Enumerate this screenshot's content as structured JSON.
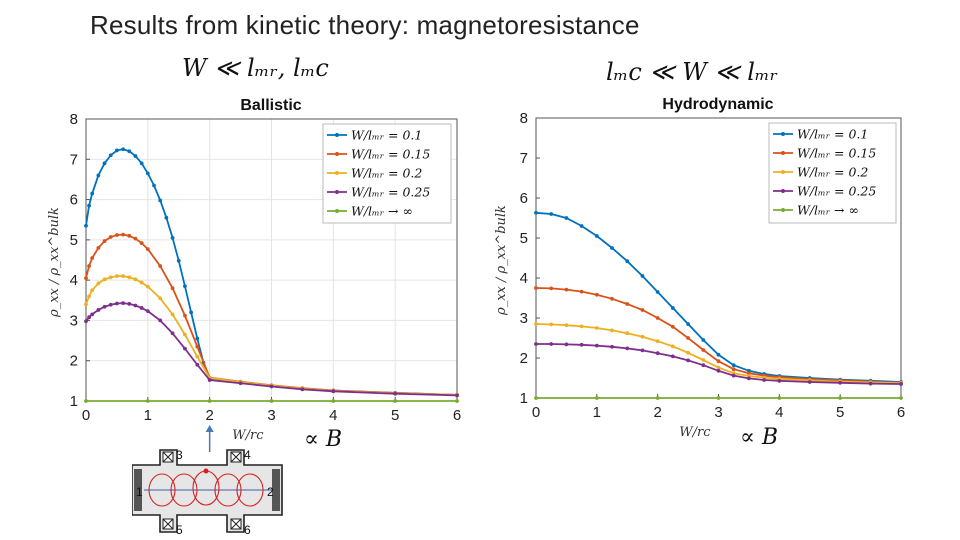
{
  "slide_title": "Results from kinetic theory: magnetoresistance",
  "regime_left": "W ≪ lₘᵣ, lₘc",
  "regime_right": "lₘc ≪ W ≪ lₘᵣ",
  "proportional_label": "∝ B",
  "arrow_marker_x": 2,
  "chart_data": [
    {
      "type": "line",
      "title": "Ballistic",
      "xlabel": "W/r_c",
      "ylabel": "ρ_xx / ρ_xx^bulk",
      "xlim": [
        0,
        6
      ],
      "ylim": [
        1,
        8
      ],
      "xticks": [
        0,
        1,
        2,
        3,
        4,
        5,
        6
      ],
      "yticks": [
        1,
        2,
        3,
        4,
        5,
        6,
        7,
        8
      ],
      "grid": true,
      "legend_position": "top-right",
      "series": [
        {
          "name": "W/l_MR = 0.1",
          "color": "#0072BD",
          "x": [
            0,
            0.05,
            0.1,
            0.2,
            0.3,
            0.4,
            0.5,
            0.6,
            0.7,
            0.8,
            0.9,
            1.0,
            1.1,
            1.2,
            1.3,
            1.4,
            1.5,
            1.6,
            1.7,
            1.8,
            1.9,
            2.0,
            2.5,
            3.0,
            3.5,
            4.0,
            5.0,
            6.0
          ],
          "y": [
            5.35,
            5.85,
            6.15,
            6.6,
            6.9,
            7.1,
            7.22,
            7.25,
            7.2,
            7.08,
            6.9,
            6.65,
            6.35,
            5.98,
            5.55,
            5.05,
            4.48,
            3.85,
            3.2,
            2.55,
            1.95,
            1.55,
            1.46,
            1.38,
            1.31,
            1.26,
            1.2,
            1.15
          ]
        },
        {
          "name": "W/l_MR = 0.15",
          "color": "#D95319",
          "x": [
            0,
            0.05,
            0.1,
            0.2,
            0.3,
            0.4,
            0.5,
            0.6,
            0.7,
            0.8,
            0.9,
            1.0,
            1.2,
            1.4,
            1.6,
            1.8,
            2.0,
            2.5,
            3.0,
            3.5,
            4.0,
            5.0,
            6.0
          ],
          "y": [
            4.05,
            4.35,
            4.55,
            4.8,
            4.97,
            5.07,
            5.12,
            5.13,
            5.1,
            5.03,
            4.92,
            4.77,
            4.35,
            3.8,
            3.12,
            2.35,
            1.58,
            1.48,
            1.39,
            1.32,
            1.26,
            1.2,
            1.15
          ]
        },
        {
          "name": "W/l_MR = 0.2",
          "color": "#EDB120",
          "x": [
            0,
            0.05,
            0.1,
            0.2,
            0.3,
            0.4,
            0.5,
            0.6,
            0.7,
            0.8,
            0.9,
            1.0,
            1.2,
            1.4,
            1.6,
            1.8,
            2.0,
            2.5,
            3.0,
            3.5,
            4.0,
            5.0,
            6.0
          ],
          "y": [
            3.4,
            3.6,
            3.75,
            3.92,
            4.02,
            4.07,
            4.1,
            4.1,
            4.07,
            4.02,
            3.94,
            3.84,
            3.55,
            3.15,
            2.65,
            2.1,
            1.57,
            1.47,
            1.38,
            1.31,
            1.25,
            1.19,
            1.15
          ]
        },
        {
          "name": "W/l_MR = 0.25",
          "color": "#7E2F8E",
          "x": [
            0,
            0.05,
            0.1,
            0.2,
            0.3,
            0.4,
            0.5,
            0.6,
            0.7,
            0.8,
            0.9,
            1.0,
            1.2,
            1.4,
            1.6,
            1.8,
            2.0,
            2.5,
            3.0,
            3.5,
            4.0,
            5.0,
            6.0
          ],
          "y": [
            2.98,
            3.08,
            3.15,
            3.26,
            3.34,
            3.39,
            3.42,
            3.43,
            3.41,
            3.37,
            3.31,
            3.23,
            3.0,
            2.68,
            2.3,
            1.9,
            1.52,
            1.44,
            1.36,
            1.29,
            1.24,
            1.18,
            1.14
          ]
        },
        {
          "name": "W/l_MR → ∞",
          "color": "#77AC30",
          "x": [
            0,
            1,
            2,
            3,
            4,
            5,
            6
          ],
          "y": [
            1.0,
            1.0,
            1.0,
            1.0,
            1.0,
            1.0,
            1.0
          ]
        }
      ]
    },
    {
      "type": "line",
      "title": "Hydrodynamic",
      "xlabel": "W/r_c",
      "ylabel": "ρ_xx / ρ_xx^bulk",
      "xlim": [
        0,
        6
      ],
      "ylim": [
        1,
        8
      ],
      "xticks": [
        0,
        1,
        2,
        3,
        4,
        5,
        6
      ],
      "yticks": [
        1,
        2,
        3,
        4,
        5,
        6,
        7,
        8
      ],
      "grid": false,
      "legend_position": "top-right",
      "series": [
        {
          "name": "W/l_MR = 0.1",
          "color": "#0072BD",
          "x": [
            0,
            0.25,
            0.5,
            0.75,
            1.0,
            1.25,
            1.5,
            1.75,
            2.0,
            2.25,
            2.5,
            2.75,
            3.0,
            3.25,
            3.5,
            3.75,
            4.0,
            4.5,
            5.0,
            5.5,
            6.0
          ],
          "y": [
            5.63,
            5.6,
            5.5,
            5.3,
            5.05,
            4.75,
            4.42,
            4.05,
            3.65,
            3.25,
            2.85,
            2.45,
            2.08,
            1.82,
            1.68,
            1.6,
            1.55,
            1.5,
            1.46,
            1.43,
            1.4
          ]
        },
        {
          "name": "W/l_MR = 0.15",
          "color": "#D95319",
          "x": [
            0,
            0.25,
            0.5,
            0.75,
            1.0,
            1.25,
            1.5,
            1.75,
            2.0,
            2.25,
            2.5,
            2.75,
            3.0,
            3.25,
            3.5,
            3.75,
            4.0,
            4.5,
            5.0,
            5.5,
            6.0
          ],
          "y": [
            3.75,
            3.74,
            3.71,
            3.66,
            3.58,
            3.48,
            3.35,
            3.2,
            3.0,
            2.78,
            2.5,
            2.2,
            1.92,
            1.72,
            1.62,
            1.56,
            1.52,
            1.47,
            1.44,
            1.41,
            1.38
          ]
        },
        {
          "name": "W/l_MR = 0.2",
          "color": "#EDB120",
          "x": [
            0,
            0.25,
            0.5,
            0.75,
            1.0,
            1.25,
            1.5,
            1.75,
            2.0,
            2.25,
            2.5,
            2.75,
            3.0,
            3.25,
            3.5,
            3.75,
            4.0,
            4.5,
            5.0,
            5.5,
            6.0
          ],
          "y": [
            2.85,
            2.84,
            2.82,
            2.79,
            2.75,
            2.69,
            2.62,
            2.53,
            2.42,
            2.29,
            2.13,
            1.95,
            1.76,
            1.62,
            1.55,
            1.51,
            1.48,
            1.44,
            1.41,
            1.39,
            1.37
          ]
        },
        {
          "name": "W/l_MR = 0.25",
          "color": "#7E2F8E",
          "x": [
            0,
            0.25,
            0.5,
            0.75,
            1.0,
            1.25,
            1.5,
            1.75,
            2.0,
            2.25,
            2.5,
            2.75,
            3.0,
            3.25,
            3.5,
            3.75,
            4.0,
            4.5,
            5.0,
            5.5,
            6.0
          ],
          "y": [
            2.35,
            2.35,
            2.34,
            2.33,
            2.31,
            2.28,
            2.24,
            2.19,
            2.12,
            2.04,
            1.94,
            1.82,
            1.68,
            1.56,
            1.49,
            1.45,
            1.43,
            1.4,
            1.38,
            1.36,
            1.35
          ]
        },
        {
          "name": "W/l_MR → ∞",
          "color": "#77AC30",
          "x": [
            0,
            1,
            2,
            3,
            4,
            5,
            6
          ],
          "y": [
            1.0,
            1.0,
            1.0,
            1.0,
            1.0,
            1.0,
            1.0
          ]
        }
      ]
    }
  ],
  "diagram": {
    "contact_labels": [
      "1",
      "2",
      "3",
      "4",
      "5",
      "6"
    ]
  }
}
